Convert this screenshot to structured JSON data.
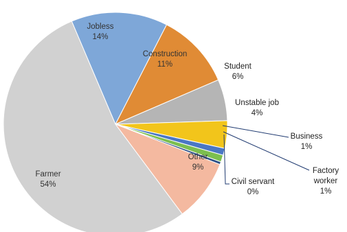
{
  "chart_data": {
    "type": "pie",
    "title": "",
    "slices": [
      {
        "label": "Jobless",
        "percent_text": "14%",
        "value": 14,
        "color": "#7ea7d8"
      },
      {
        "label": "Construction",
        "percent_text": "11%",
        "value": 11,
        "color": "#e08b35"
      },
      {
        "label": "Student",
        "percent_text": "6%",
        "value": 6,
        "color": "#b5b5b5"
      },
      {
        "label": "Unstable job",
        "percent_text": "4%",
        "value": 4,
        "color": "#f2c51b"
      },
      {
        "label": "Business",
        "percent_text": "1%",
        "value": 1,
        "color": "#4a77c4"
      },
      {
        "label": "Factory worker",
        "percent_text": "1%",
        "value": 1,
        "color": "#7cbf4f"
      },
      {
        "label": "Civil servant",
        "percent_text": "0%",
        "value": 0.4,
        "color": "#2c4f86"
      },
      {
        "label": "Other",
        "percent_text": "9%",
        "value": 9,
        "color": "#f4b9a0"
      },
      {
        "label": "Farmer",
        "percent_text": "54%",
        "value": 54,
        "color": "#d1d1d1"
      }
    ],
    "legend": "none",
    "labels_placement": "on slices with leader lines for small slices"
  }
}
